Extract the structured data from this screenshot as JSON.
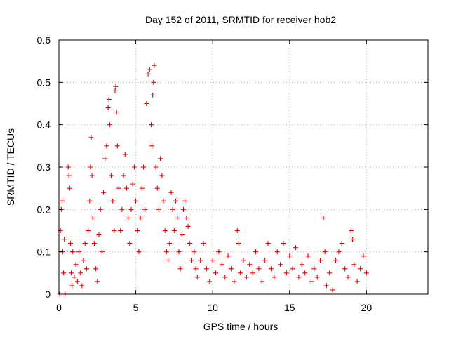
{
  "chart_data": {
    "type": "scatter",
    "title": "Day 152 of 2011, SRMTID for receiver hob2",
    "xlabel": "GPS time / hours",
    "ylabel": "SRMTID / TECUs",
    "xlim": [
      0,
      24
    ],
    "ylim": [
      0,
      0.6
    ],
    "x_ticks": [
      0,
      5,
      10,
      15,
      20
    ],
    "x_tick_labels": [
      "0",
      "5",
      "10",
      "15",
      "20"
    ],
    "y_ticks": [
      0,
      0.1,
      0.2,
      0.3,
      0.4,
      0.5,
      0.6
    ],
    "y_tick_labels": [
      "0",
      "0.1",
      "0.2",
      "0.3",
      "0.4",
      "0.5",
      "0.6"
    ],
    "grid": true,
    "marker": "+",
    "marker_color": "#e00000",
    "series": [
      {
        "name": "SRMTID",
        "points": [
          [
            0.05,
            0.0
          ],
          [
            0.1,
            0.15
          ],
          [
            0.15,
            0.2
          ],
          [
            0.2,
            0.22
          ],
          [
            0.25,
            0.1
          ],
          [
            0.3,
            0.05
          ],
          [
            0.35,
            0.13
          ],
          [
            0.4,
            0.0
          ],
          [
            0.6,
            0.3
          ],
          [
            0.65,
            0.28
          ],
          [
            0.7,
            0.25
          ],
          [
            0.75,
            0.12
          ],
          [
            0.8,
            0.05
          ],
          [
            0.85,
            0.02
          ],
          [
            0.9,
            0.1
          ],
          [
            1.0,
            0.04
          ],
          [
            1.1,
            0.07
          ],
          [
            1.2,
            0.03
          ],
          [
            1.3,
            0.1
          ],
          [
            1.4,
            0.05
          ],
          [
            1.5,
            0.02
          ],
          [
            1.6,
            0.08
          ],
          [
            1.7,
            0.12
          ],
          [
            1.8,
            0.06
          ],
          [
            1.9,
            0.15
          ],
          [
            2.0,
            0.22
          ],
          [
            2.05,
            0.3
          ],
          [
            2.1,
            0.37
          ],
          [
            2.15,
            0.28
          ],
          [
            2.2,
            0.18
          ],
          [
            2.3,
            0.12
          ],
          [
            2.4,
            0.06
          ],
          [
            2.5,
            0.03
          ],
          [
            2.6,
            0.14
          ],
          [
            2.7,
            0.2
          ],
          [
            2.8,
            0.1
          ],
          [
            2.9,
            0.24
          ],
          [
            3.0,
            0.32
          ],
          [
            3.1,
            0.35
          ],
          [
            3.2,
            0.44
          ],
          [
            3.25,
            0.46
          ],
          [
            3.3,
            0.4
          ],
          [
            3.4,
            0.28
          ],
          [
            3.5,
            0.22
          ],
          [
            3.6,
            0.15
          ],
          [
            3.65,
            0.48
          ],
          [
            3.7,
            0.49
          ],
          [
            3.75,
            0.43
          ],
          [
            3.8,
            0.35
          ],
          [
            3.9,
            0.25
          ],
          [
            4.0,
            0.15
          ],
          [
            4.1,
            0.2
          ],
          [
            4.2,
            0.28
          ],
          [
            4.3,
            0.33
          ],
          [
            4.4,
            0.25
          ],
          [
            4.5,
            0.18
          ],
          [
            4.6,
            0.12
          ],
          [
            4.7,
            0.2
          ],
          [
            4.8,
            0.26
          ],
          [
            4.9,
            0.3
          ],
          [
            5.0,
            0.22
          ],
          [
            5.1,
            0.15
          ],
          [
            5.2,
            0.1
          ],
          [
            5.3,
            0.18
          ],
          [
            5.4,
            0.25
          ],
          [
            5.5,
            0.3
          ],
          [
            5.6,
            0.2
          ],
          [
            5.7,
            0.45
          ],
          [
            5.8,
            0.52
          ],
          [
            5.9,
            0.53
          ],
          [
            6.0,
            0.4
          ],
          [
            6.05,
            0.35
          ],
          [
            6.1,
            0.47
          ],
          [
            6.15,
            0.5
          ],
          [
            6.2,
            0.54
          ],
          [
            6.3,
            0.3
          ],
          [
            6.4,
            0.25
          ],
          [
            6.5,
            0.2
          ],
          [
            6.6,
            0.32
          ],
          [
            6.7,
            0.28
          ],
          [
            6.8,
            0.22
          ],
          [
            6.9,
            0.15
          ],
          [
            7.0,
            0.1
          ],
          [
            7.1,
            0.08
          ],
          [
            7.2,
            0.12
          ],
          [
            7.3,
            0.24
          ],
          [
            7.4,
            0.2
          ],
          [
            7.5,
            0.15
          ],
          [
            7.6,
            0.22
          ],
          [
            7.7,
            0.18
          ],
          [
            7.8,
            0.1
          ],
          [
            7.9,
            0.06
          ],
          [
            8.0,
            0.14
          ],
          [
            8.1,
            0.2
          ],
          [
            8.2,
            0.22
          ],
          [
            8.3,
            0.18
          ],
          [
            8.4,
            0.16
          ],
          [
            8.5,
            0.12
          ],
          [
            8.6,
            0.08
          ],
          [
            8.8,
            0.1
          ],
          [
            8.9,
            0.06
          ],
          [
            9.0,
            0.04
          ],
          [
            9.2,
            0.08
          ],
          [
            9.4,
            0.12
          ],
          [
            9.6,
            0.06
          ],
          [
            9.8,
            0.03
          ],
          [
            10.0,
            0.08
          ],
          [
            10.2,
            0.05
          ],
          [
            10.4,
            0.1
          ],
          [
            10.6,
            0.07
          ],
          [
            10.8,
            0.04
          ],
          [
            11.0,
            0.09
          ],
          [
            11.2,
            0.06
          ],
          [
            11.4,
            0.03
          ],
          [
            11.6,
            0.15
          ],
          [
            11.7,
            0.12
          ],
          [
            11.8,
            0.05
          ],
          [
            12.0,
            0.08
          ],
          [
            12.2,
            0.04
          ],
          [
            12.4,
            0.07
          ],
          [
            12.6,
            0.05
          ],
          [
            12.8,
            0.1
          ],
          [
            13.0,
            0.06
          ],
          [
            13.2,
            0.03
          ],
          [
            13.4,
            0.08
          ],
          [
            13.6,
            0.12
          ],
          [
            13.8,
            0.06
          ],
          [
            14.0,
            0.04
          ],
          [
            14.2,
            0.1
          ],
          [
            14.4,
            0.07
          ],
          [
            14.6,
            0.12
          ],
          [
            14.8,
            0.05
          ],
          [
            15.0,
            0.09
          ],
          [
            15.2,
            0.06
          ],
          [
            15.4,
            0.11
          ],
          [
            15.6,
            0.04
          ],
          [
            15.8,
            0.07
          ],
          [
            16.0,
            0.05
          ],
          [
            16.2,
            0.09
          ],
          [
            16.4,
            0.03
          ],
          [
            16.6,
            0.06
          ],
          [
            16.8,
            0.04
          ],
          [
            17.0,
            0.08
          ],
          [
            17.2,
            0.18
          ],
          [
            17.3,
            0.1
          ],
          [
            17.4,
            0.02
          ],
          [
            17.6,
            0.05
          ],
          [
            17.8,
            0.01
          ],
          [
            18.0,
            0.08
          ],
          [
            18.2,
            0.1
          ],
          [
            18.4,
            0.12
          ],
          [
            18.6,
            0.06
          ],
          [
            18.8,
            0.04
          ],
          [
            19.0,
            0.15
          ],
          [
            19.1,
            0.13
          ],
          [
            19.2,
            0.07
          ],
          [
            19.4,
            0.03
          ],
          [
            19.6,
            0.06
          ],
          [
            19.8,
            0.09
          ],
          [
            20.0,
            0.05
          ]
        ]
      }
    ]
  }
}
